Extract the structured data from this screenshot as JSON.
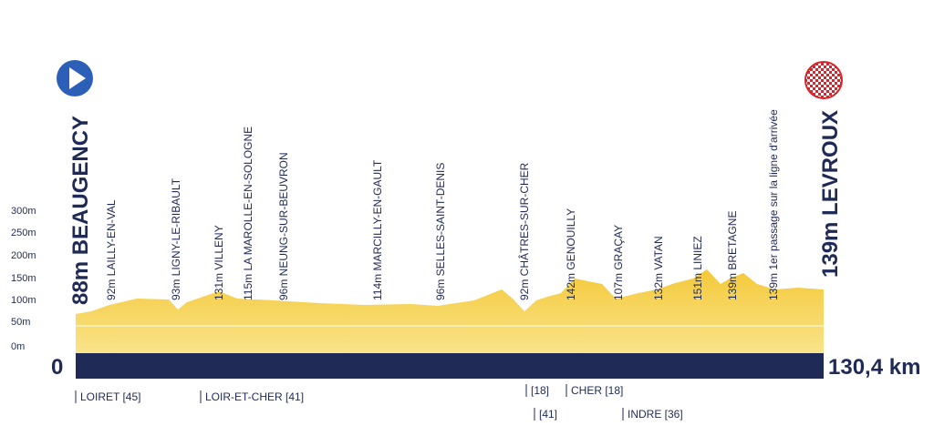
{
  "start": {
    "name": "88m BEAUGENCY",
    "distance": "0"
  },
  "finish": {
    "name": "139m LEVROUX",
    "distance": "130,4 km"
  },
  "altitude_labels": [
    "300m",
    "250m",
    "200m",
    "150m",
    "100m",
    "50m",
    "0m"
  ],
  "waypoints": [
    "92m LAILLY-EN-VAL",
    "93m LIGNY-LE-RIBAULT",
    "131m VILLENY",
    "115m LA MAROLLE-EN-SOLOGNE",
    "96m NEUNG-SUR-BEUVRON",
    "114m MARCILLY-EN-GAULT",
    "96m SELLES-SAINT-DENIS",
    "92m CHÂTRES-SUR-CHER",
    "142m GENOUILLY",
    "107m GRAÇAY",
    "132m VATAN",
    "151m LINIEZ",
    "139m BRETAGNE",
    "139m 1er passage sur la ligne d'arrivée"
  ],
  "departments": [
    "LOIRET [45]",
    "LOIR-ET-CHER [41]",
    "[18]",
    "CHER [18]",
    "[41]",
    "INDRE [36]"
  ]
}
